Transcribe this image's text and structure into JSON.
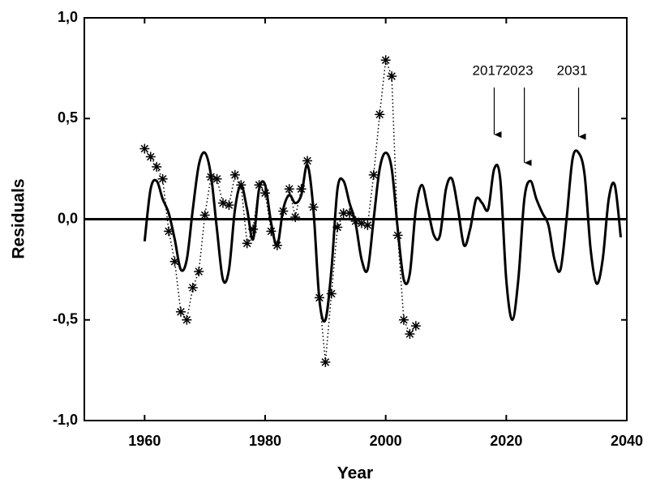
{
  "chart_data": {
    "type": "line",
    "xlabel": "Year",
    "ylabel": "Residuals",
    "xlim": [
      1950,
      2040
    ],
    "ylim": [
      -1.0,
      1.0
    ],
    "xticks": [
      1960,
      1980,
      2000,
      2020,
      2040
    ],
    "yticks": [
      {
        "value": 1.0,
        "label": "1,0"
      },
      {
        "value": 0.5,
        "label": "0,5"
      },
      {
        "value": 0.0,
        "label": "0,0"
      },
      {
        "value": -0.5,
        "label": "-0,5"
      },
      {
        "value": -1.0,
        "label": "-1,0"
      }
    ],
    "series": [
      {
        "color": "#000000",
        "linestyle": "solid",
        "marker": "none",
        "x": [
          1960,
          1961,
          1962,
          1963,
          1964,
          1965,
          1966,
          1967,
          1968,
          1969,
          1970,
          1971,
          1972,
          1973,
          1974,
          1975,
          1976,
          1977,
          1978,
          1979,
          1980,
          1981,
          1982,
          1983,
          1984,
          1985,
          1986,
          1987,
          1988,
          1989,
          1990,
          1991,
          1992,
          1993,
          1994,
          1995,
          1996,
          1997,
          1998,
          1999,
          2000,
          2001,
          2002,
          2003,
          2004,
          2005,
          2006,
          2007,
          2008,
          2009,
          2010,
          2011,
          2012,
          2013,
          2014,
          2015,
          2016,
          2017,
          2018,
          2019,
          2020,
          2021,
          2022,
          2023,
          2024,
          2025,
          2026,
          2027,
          2028,
          2029,
          2030,
          2031,
          2032,
          2033,
          2034,
          2035,
          2036,
          2037,
          2038,
          2039
        ],
        "values": [
          -0.11,
          0.15,
          0.19,
          0.1,
          0.03,
          -0.1,
          -0.25,
          -0.2,
          0.05,
          0.27,
          0.33,
          0.22,
          -0.05,
          -0.3,
          -0.25,
          0.05,
          0.17,
          0.05,
          -0.1,
          0.15,
          0.17,
          -0.02,
          -0.13,
          0.05,
          0.12,
          0.08,
          0.12,
          0.27,
          0.05,
          -0.4,
          -0.5,
          -0.25,
          0.15,
          0.19,
          0.08,
          -0.02,
          -0.2,
          -0.25,
          0.0,
          0.25,
          0.33,
          0.25,
          -0.05,
          -0.3,
          -0.27,
          0.05,
          0.17,
          0.05,
          -0.08,
          -0.08,
          0.15,
          0.2,
          0.05,
          -0.13,
          -0.05,
          0.1,
          0.08,
          0.05,
          0.25,
          0.2,
          -0.3,
          -0.5,
          -0.3,
          0.1,
          0.19,
          0.1,
          0.03,
          -0.03,
          -0.2,
          -0.25,
          0.0,
          0.3,
          0.33,
          0.22,
          -0.15,
          -0.32,
          -0.2,
          0.1,
          0.17,
          -0.09
        ]
      },
      {
        "color": "#000000",
        "linestyle": "dotted",
        "marker": "asterisk",
        "x": [
          1960,
          1961,
          1962,
          1963,
          1964,
          1965,
          1966,
          1967,
          1968,
          1969,
          1970,
          1971,
          1972,
          1973,
          1974,
          1975,
          1976,
          1977,
          1978,
          1979,
          1980,
          1981,
          1982,
          1983,
          1984,
          1985,
          1986,
          1987,
          1988,
          1989,
          1990,
          1991,
          1992,
          1993,
          1994,
          1995,
          1996,
          1997,
          1998,
          1999,
          2000,
          2001,
          2002,
          2003,
          2004,
          2005
        ],
        "values": [
          0.35,
          0.31,
          0.26,
          0.2,
          -0.06,
          -0.21,
          -0.46,
          -0.5,
          -0.34,
          -0.26,
          0.02,
          0.21,
          0.2,
          0.08,
          0.07,
          0.22,
          0.17,
          -0.12,
          -0.05,
          0.17,
          0.13,
          -0.06,
          -0.13,
          0.04,
          0.15,
          0.01,
          0.15,
          0.29,
          0.06,
          -0.39,
          -0.71,
          -0.37,
          -0.04,
          0.03,
          0.03,
          -0.01,
          -0.02,
          -0.03,
          0.22,
          0.52,
          0.79,
          0.71,
          -0.08,
          -0.5,
          -0.57,
          -0.53
        ]
      }
    ],
    "annotations": [
      {
        "text": "2017",
        "x": 2018,
        "y": 0.42
      },
      {
        "text": "2023",
        "x": 2023,
        "y": 0.28
      },
      {
        "text": "2031",
        "x": 2032,
        "y": 0.41
      }
    ]
  }
}
